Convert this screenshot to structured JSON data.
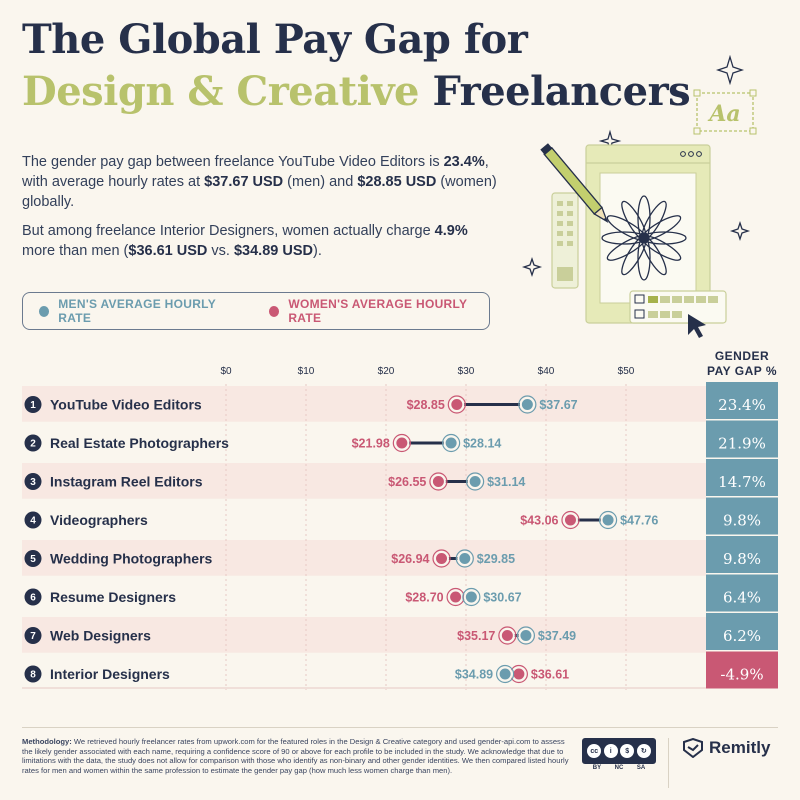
{
  "header": {
    "title_line1": "The Global Pay Gap for",
    "title_accent": "Design & Creative",
    "title_rest": " Freelancers"
  },
  "intro": {
    "p1_a": "The gender pay gap between freelance YouTube Video Editors is ",
    "p1_b": "23.4%",
    "p1_c": ", with average hourly rates at ",
    "p1_d": "$37.67 USD",
    "p1_e": " (men) and ",
    "p1_f": "$28.85 USD",
    "p1_g": " (women) globally.",
    "p2_a": "But among freelance Interior Designers, women actually charge ",
    "p2_b": "4.9%",
    "p2_c": " more than men (",
    "p2_d": "$36.61 USD",
    "p2_e": " vs. ",
    "p2_f": "$34.89 USD",
    "p2_g": ")."
  },
  "legend": {
    "men": "MEN'S AVERAGE HOURLY RATE",
    "women": "WOMEN'S AVERAGE HOURLY RATE"
  },
  "colors": {
    "men": "#6b9cae",
    "women": "#c95874",
    "navy": "#26304a",
    "gap_positive": "#6b9cae",
    "gap_negative": "#c95874",
    "accent": "#b8c26c",
    "row_band": "#f8e8e2"
  },
  "gap_header": [
    "GENDER",
    "PAY GAP %"
  ],
  "chart_data": {
    "type": "dumbbell",
    "xticks": [
      "$0",
      "$10",
      "$20",
      "$30",
      "$40",
      "$50"
    ],
    "xlim": [
      0,
      50
    ],
    "series": [
      {
        "name": "MEN'S AVERAGE HOURLY RATE"
      },
      {
        "name": "WOMEN'S AVERAGE HOURLY RATE"
      }
    ],
    "rows": [
      {
        "rank": "1",
        "label": "YouTube Video Editors",
        "men": 37.67,
        "women": 28.85,
        "men_label": "$37.67",
        "women_label": "$28.85",
        "gap": "23.4%"
      },
      {
        "rank": "2",
        "label": "Real Estate Photographers",
        "men": 28.14,
        "women": 21.98,
        "men_label": "$28.14",
        "women_label": "$21.98",
        "gap": "21.9%"
      },
      {
        "rank": "3",
        "label": "Instagram Reel Editors",
        "men": 31.14,
        "women": 26.55,
        "men_label": "$31.14",
        "women_label": "$26.55",
        "gap": "14.7%"
      },
      {
        "rank": "4",
        "label": "Videographers",
        "men": 47.76,
        "women": 43.06,
        "men_label": "$47.76",
        "women_label": "$43.06",
        "gap": "9.8%"
      },
      {
        "rank": "5",
        "label": "Wedding Photographers",
        "men": 29.85,
        "women": 26.94,
        "men_label": "$29.85",
        "women_label": "$26.94",
        "gap": "9.8%"
      },
      {
        "rank": "6",
        "label": "Resume Designers",
        "men": 30.67,
        "women": 28.7,
        "men_label": "$30.67",
        "women_label": "$28.70",
        "gap": "6.4%"
      },
      {
        "rank": "7",
        "label": "Web Designers",
        "men": 37.49,
        "women": 35.17,
        "men_label": "$37.49",
        "women_label": "$35.17",
        "gap": "6.2%"
      },
      {
        "rank": "8",
        "label": "Interior Designers",
        "men": 34.89,
        "women": 36.61,
        "men_label": "$34.89",
        "women_label": "$36.61",
        "gap": "-4.9%"
      }
    ]
  },
  "illustration": {
    "font_badge": "Aa"
  },
  "footer": {
    "method_label": "Methodology:",
    "method_text": " We retrieved hourly freelancer rates from upwork.com for the featured roles in the Design & Creative category and used gender-api.com to assess the likely gender associated with each name, requiring a confidence score of 90 or above for each profile to be included in the study. We acknowledge that due to limitations with the data, the study does not allow for comparison with those who identify as non-binary and other gender identities. We then compared listed hourly rates for men and women within the same profession to estimate the gender pay gap (how much less women charge than men).",
    "license_icons": [
      "cc",
      "by",
      "nc",
      "sa"
    ],
    "license_labels": [
      "BY",
      "NC",
      "SA"
    ],
    "brand": "Remitly"
  }
}
